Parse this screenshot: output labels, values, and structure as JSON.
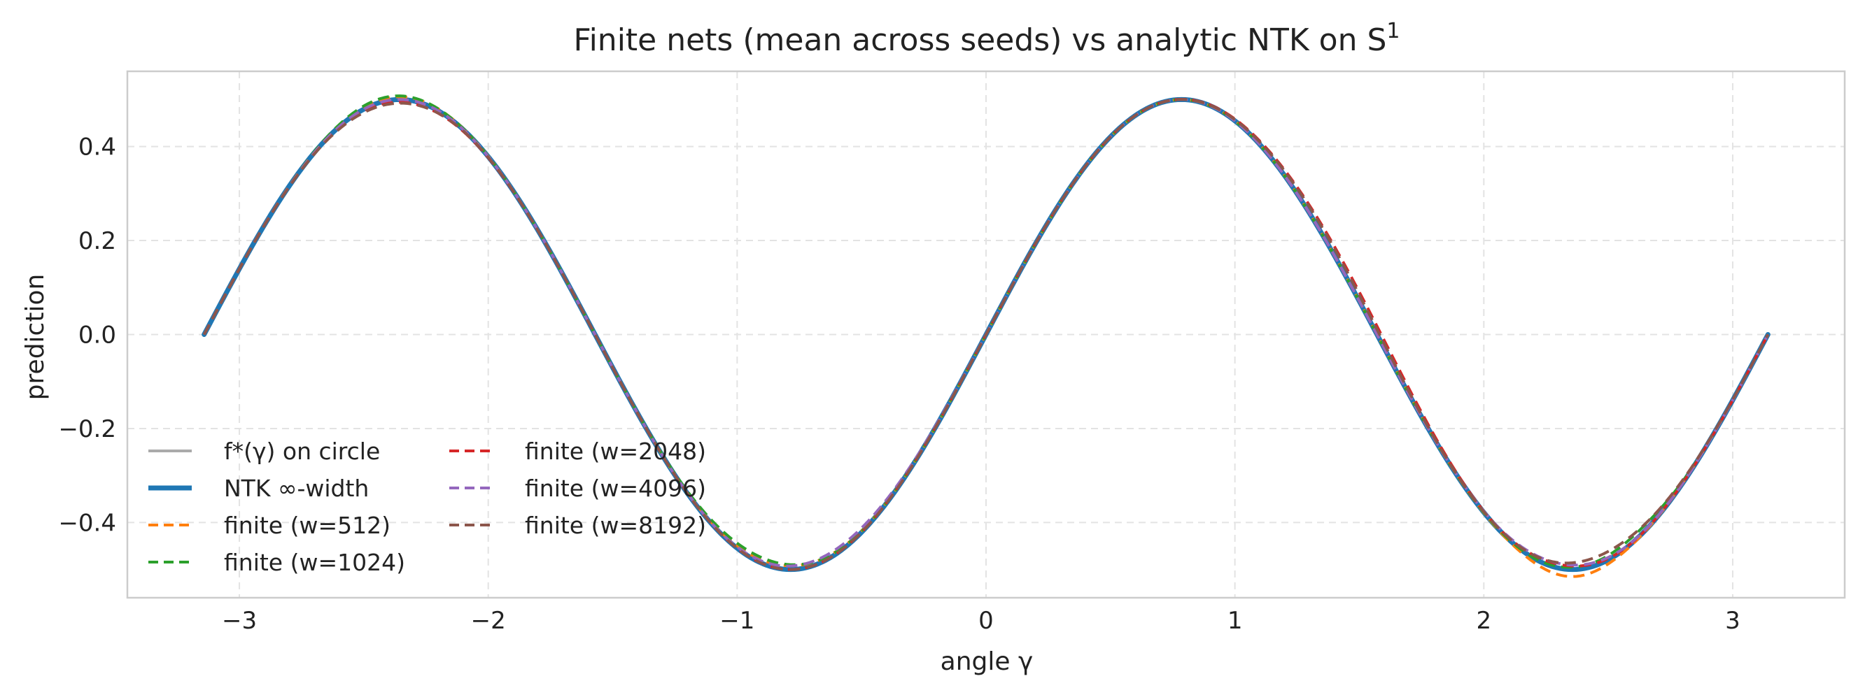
{
  "chart_data": {
    "type": "line",
    "title": "Finite nets (mean across seeds) vs analytic NTK on S¹",
    "xlabel": "angle γ",
    "ylabel": "prediction",
    "xlim": [
      -3.45,
      3.45
    ],
    "ylim": [
      -0.56,
      0.56
    ],
    "x_ticks": [
      -3,
      -2,
      -1,
      0,
      1,
      2,
      3
    ],
    "x_tick_labels": [
      "−3",
      "−2",
      "−1",
      "0",
      "1",
      "2",
      "3"
    ],
    "y_ticks": [
      -0.4,
      -0.2,
      0.0,
      0.2,
      0.4
    ],
    "y_tick_labels": [
      "−0.4",
      "−0.2",
      "0.0",
      "0.2",
      "0.4"
    ],
    "grid": true,
    "legend_position": "lower-left",
    "function": "0.5*sin(2*x)",
    "x_range": [
      -3.1416,
      3.1416
    ],
    "series": [
      {
        "name": "f*(γ) on circle",
        "color": "#aaaaaa",
        "style": "solid",
        "width": 4,
        "perturb": []
      },
      {
        "name": "NTK ∞-width",
        "color": "#1f77b4",
        "style": "solid",
        "width": 7,
        "perturb": []
      },
      {
        "name": "finite (w=512)",
        "color": "#ff7f0e",
        "style": "dashed",
        "width": 4,
        "perturb": [
          [
            -2.35,
            0.006,
            0.25
          ],
          [
            -0.8,
            0.008,
            0.3
          ],
          [
            2.35,
            -0.015,
            0.2
          ]
        ]
      },
      {
        "name": "finite (w=1024)",
        "color": "#2ca02c",
        "style": "dashed",
        "width": 4,
        "perturb": [
          [
            -2.4,
            0.008,
            0.25
          ],
          [
            -0.9,
            0.012,
            0.3
          ],
          [
            2.45,
            0.006,
            0.2
          ],
          [
            2.65,
            0.01,
            0.15
          ]
        ]
      },
      {
        "name": "finite (w=2048)",
        "color": "#d62728",
        "style": "dashed",
        "width": 4,
        "perturb": [
          [
            -2.3,
            -0.006,
            0.3
          ],
          [
            1.45,
            0.02,
            0.35
          ],
          [
            2.3,
            0.008,
            0.2
          ]
        ]
      },
      {
        "name": "finite (w=4096)",
        "color": "#9467bd",
        "style": "dashed",
        "width": 4,
        "perturb": [
          [
            -0.6,
            0.01,
            0.35
          ],
          [
            2.3,
            0.01,
            0.25
          ]
        ]
      },
      {
        "name": "finite (w=8192)",
        "color": "#8c564b",
        "style": "dashed",
        "width": 4,
        "perturb": [
          [
            -2.4,
            -0.008,
            0.3
          ],
          [
            1.4,
            0.015,
            0.3
          ],
          [
            2.5,
            0.018,
            0.3
          ]
        ]
      }
    ]
  }
}
